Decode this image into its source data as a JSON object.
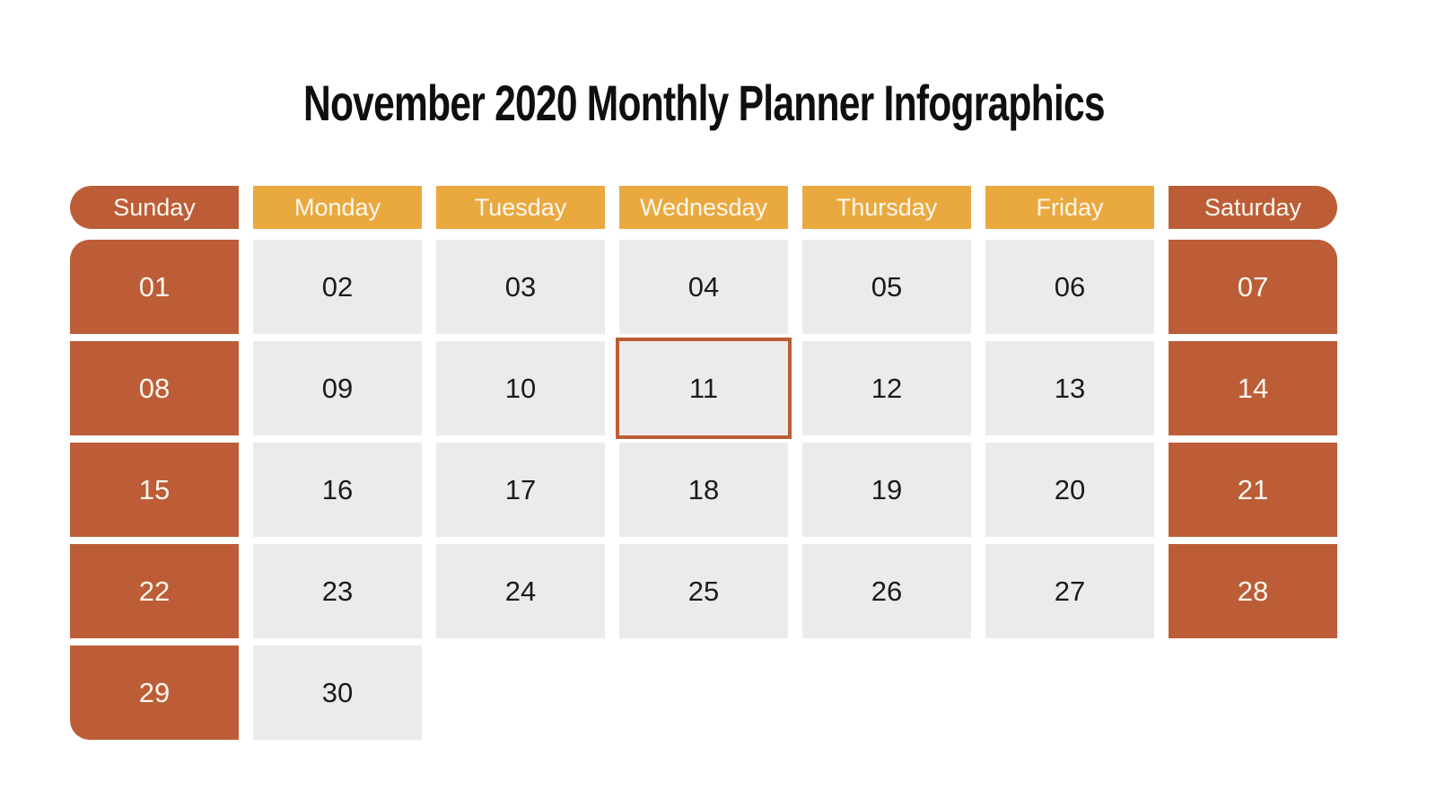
{
  "title": "November 2020 Monthly Planner Infographics",
  "weekday_headers": [
    "Sunday",
    "Monday",
    "Tuesday",
    "Wednesday",
    "Thursday",
    "Friday",
    "Saturday"
  ],
  "days": [
    "01",
    "02",
    "03",
    "04",
    "05",
    "06",
    "07",
    "08",
    "09",
    "10",
    "11",
    "12",
    "13",
    "14",
    "15",
    "16",
    "17",
    "18",
    "19",
    "20",
    "21",
    "22",
    "23",
    "24",
    "25",
    "26",
    "27",
    "28",
    "29",
    "30"
  ],
  "highlighted_day": "11",
  "colors": {
    "weekend_fill": "#bc5d37",
    "weekday_header_fill": "#eaa93f",
    "weekday_cell_fill": "#ebebeb",
    "highlight_border": "#bc5d37",
    "title_text": "#0f0f0f",
    "light_text": "#fcf7ee",
    "dark_text": "#1b1b1b",
    "background": "#ffffff"
  }
}
